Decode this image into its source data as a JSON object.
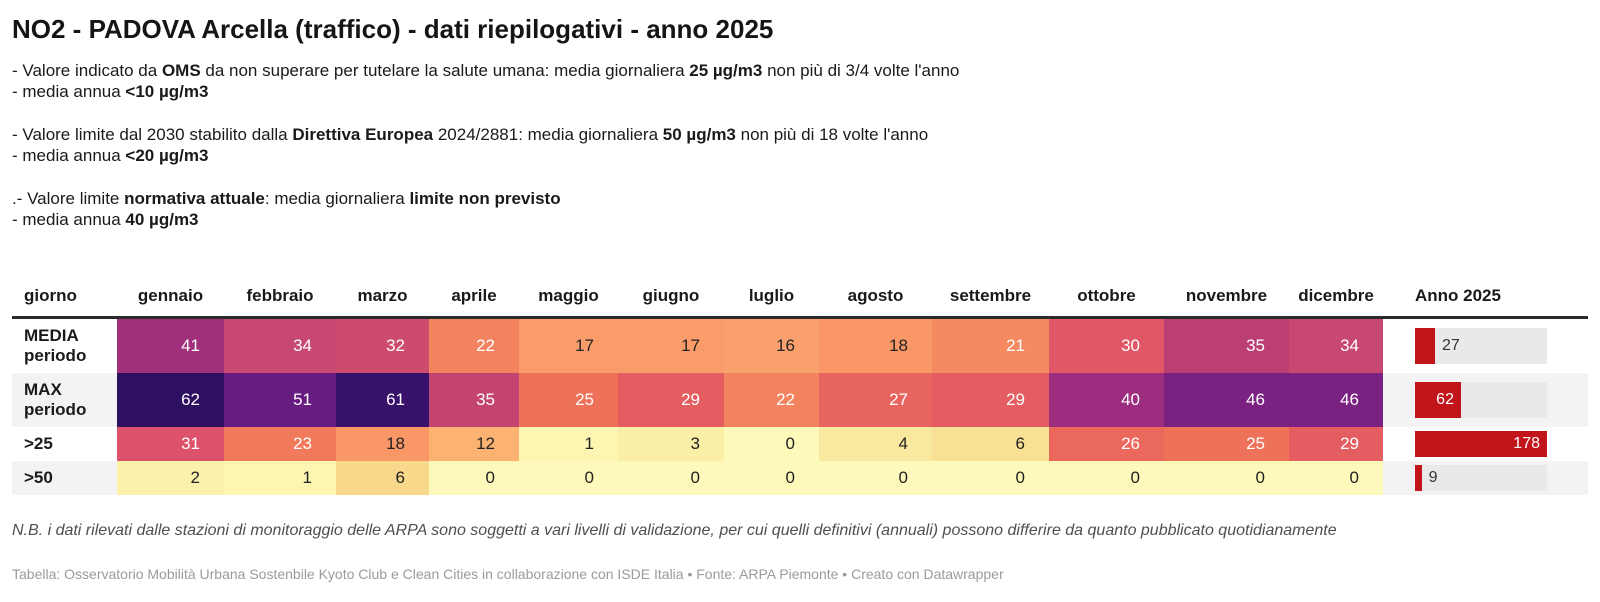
{
  "page": {
    "title": "NO2 - PADOVA Arcella (traffico) - dati riepilogativi - anno 2025",
    "nb_note": "N.B. i dati rilevati dalle stazioni di monitoraggio delle ARPA sono soggetti a vari livelli di validazione, per cui quelli definitivi (annuali) possono differire da quanto pubblicato quotidianamente",
    "footer": "Tabella: Osservatorio Mobilità Urbana Sostenbile Kyoto Club e Clean Cities in collaborazione con ISDE Italia • Fonte: ARPA Piemonte • Creato con Datawrapper"
  },
  "notes": [
    {
      "lines": [
        {
          "segments": [
            {
              "text": "- Valore indicato da ",
              "bold": false
            },
            {
              "text": "OMS",
              "bold": true
            },
            {
              "text": " da non superare per tutelare la salute umana: media giornaliera ",
              "bold": false
            },
            {
              "text": "25 µg/m3",
              "bold": true
            },
            {
              "text": " non più di 3/4 volte l'anno",
              "bold": false
            }
          ]
        },
        {
          "segments": [
            {
              "text": "- media annua ",
              "bold": false
            },
            {
              "text": "<10 µg/m3",
              "bold": true
            }
          ]
        }
      ]
    },
    {
      "lines": [
        {
          "segments": [
            {
              "text": "- Valore limite dal 2030 stabilito dalla ",
              "bold": false
            },
            {
              "text": "Direttiva Europea",
              "bold": true
            },
            {
              "text": " 2024/2881: media giornaliera ",
              "bold": false
            },
            {
              "text": "50 µg/m3",
              "bold": true
            },
            {
              "text": " non più di 18 volte l'anno",
              "bold": false
            }
          ]
        },
        {
          "segments": [
            {
              "text": "- media annua ",
              "bold": false
            },
            {
              "text": "<20 µg/m3",
              "bold": true
            }
          ]
        }
      ]
    },
    {
      "lines": [
        {
          "segments": [
            {
              "text": ".- Valore limite ",
              "bold": false
            },
            {
              "text": "normativa attuale",
              "bold": true
            },
            {
              "text": ": media giornaliera ",
              "bold": false
            },
            {
              "text": "limite non previsto",
              "bold": true
            }
          ]
        },
        {
          "segments": [
            {
              "text": "- media annua ",
              "bold": false
            },
            {
              "text": "40 µg/m3",
              "bold": true
            }
          ]
        }
      ]
    }
  ],
  "chart_data": {
    "type": "table",
    "title": "NO2 - PADOVA Arcella (traffico) - dati riepilogativi - anno 2025",
    "day_column_header": "giorno",
    "months": [
      "gennaio",
      "febbraio",
      "marzo",
      "aprile",
      "maggio",
      "giugno",
      "luglio",
      "agosto",
      "settembre",
      "ottobre",
      "novembre",
      "dicembre"
    ],
    "anno_header": "Anno 2025",
    "rows": [
      {
        "label": "MEDIA periodo",
        "label_lines": [
          "MEDIA",
          "periodo"
        ],
        "values": [
          41,
          34,
          32,
          22,
          17,
          17,
          16,
          18,
          21,
          30,
          35,
          34
        ],
        "colors": [
          "#a0307c",
          "#c74870",
          "#cd4b6d",
          "#f3825e",
          "#f99c69",
          "#f99c69",
          "#faa06c",
          "#f99767",
          "#f58960",
          "#e05767",
          "#bc3f74",
          "#c74870"
        ],
        "anno_value": 27,
        "anno_label_inside": false
      },
      {
        "label": "MAX periodo",
        "label_lines": [
          "MAX",
          "periodo"
        ],
        "values": [
          62,
          51,
          61,
          35,
          25,
          29,
          22,
          27,
          29,
          40,
          46,
          46
        ],
        "colors": [
          "#2d1060",
          "#671c81",
          "#38126a",
          "#c34371",
          "#ee715a",
          "#e45d61",
          "#f3825e",
          "#e8645e",
          "#e45d61",
          "#9d2d7f",
          "#7b2182",
          "#7b2182"
        ],
        "anno_value": 62,
        "anno_label_inside": true
      },
      {
        "label": ">25",
        "label_lines": [
          ">25"
        ],
        "values": [
          31,
          23,
          18,
          12,
          1,
          3,
          0,
          4,
          6,
          26,
          25,
          29
        ],
        "colors": [
          "#dc526a",
          "#f17a5c",
          "#f99767",
          "#fcb271",
          "#fdf5b2",
          "#fbefa7",
          "#fdf9bb",
          "#f9e99e",
          "#f8e094",
          "#ea685c",
          "#ee715a",
          "#e45d61"
        ],
        "anno_value": 178,
        "anno_label_inside": true
      },
      {
        "label": ">50",
        "label_lines": [
          ">50"
        ],
        "values": [
          2,
          1,
          6,
          0,
          0,
          0,
          0,
          0,
          0,
          0,
          0,
          0
        ],
        "colors": [
          "#fbf1aa",
          "#fdf5b2",
          "#f8d88a",
          "#fdf9bb",
          "#fdf9bb",
          "#fdf9bb",
          "#fdf9bb",
          "#fdf9bb",
          "#fdf9bb",
          "#fdf9bb",
          "#fdf9bb",
          "#fdf9bb"
        ],
        "anno_value": 9,
        "anno_label_inside": false
      }
    ],
    "anno_axis_max": 178,
    "light_text_min": 21,
    "bar_color": "#c2151b",
    "bar_track_color": "#e9e9e9",
    "stripe_color": "#f3f3f3",
    "cell_text_dark": "#222222",
    "cell_text_light": "#ffffff"
  }
}
